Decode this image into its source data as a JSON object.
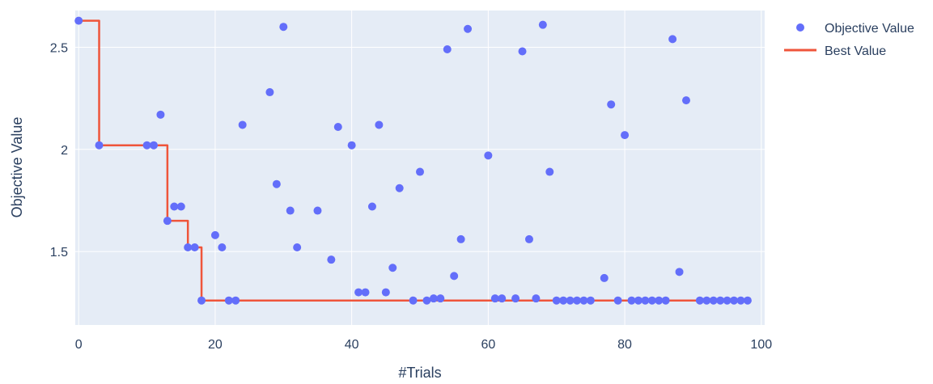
{
  "chart_data": {
    "type": "scatter",
    "title": "",
    "xlabel": "#Trials",
    "ylabel": "Objective Value",
    "xlim": [
      -0.5,
      100.5
    ],
    "ylim": [
      1.14,
      2.68
    ],
    "grid": true,
    "legend_position": "top-right",
    "x_ticks": [
      0,
      20,
      40,
      60,
      80,
      100
    ],
    "x_tick_labels": [
      "0",
      "20",
      "40",
      "60",
      "80",
      "100"
    ],
    "y_ticks": [
      1.5,
      2,
      2.5
    ],
    "y_tick_labels": [
      "1.5",
      "2",
      "2.5"
    ],
    "series": [
      {
        "name": "Objective Value",
        "kind": "markers",
        "color": "#636efa",
        "points": [
          [
            0,
            2.63
          ],
          [
            3,
            2.02
          ],
          [
            10,
            2.02
          ],
          [
            11,
            2.02
          ],
          [
            12,
            2.17
          ],
          [
            13,
            1.65
          ],
          [
            14,
            1.72
          ],
          [
            15,
            1.72
          ],
          [
            16,
            1.52
          ],
          [
            17,
            1.52
          ],
          [
            18,
            1.26
          ],
          [
            20,
            1.58
          ],
          [
            21,
            1.52
          ],
          [
            22,
            1.26
          ],
          [
            23,
            1.26
          ],
          [
            24,
            2.12
          ],
          [
            28,
            2.28
          ],
          [
            29,
            1.83
          ],
          [
            30,
            2.6
          ],
          [
            31,
            1.7
          ],
          [
            32,
            1.52
          ],
          [
            35,
            1.7
          ],
          [
            37,
            1.46
          ],
          [
            38,
            2.11
          ],
          [
            40,
            2.02
          ],
          [
            41,
            1.3
          ],
          [
            42,
            1.3
          ],
          [
            43,
            1.72
          ],
          [
            44,
            2.12
          ],
          [
            45,
            1.3
          ],
          [
            46,
            1.42
          ],
          [
            47,
            1.81
          ],
          [
            49,
            1.26
          ],
          [
            50,
            1.89
          ],
          [
            51,
            1.26
          ],
          [
            52,
            1.27
          ],
          [
            53,
            1.27
          ],
          [
            54,
            2.49
          ],
          [
            55,
            1.38
          ],
          [
            56,
            1.56
          ],
          [
            57,
            2.59
          ],
          [
            60,
            1.97
          ],
          [
            61,
            1.27
          ],
          [
            62,
            1.27
          ],
          [
            64,
            1.27
          ],
          [
            65,
            2.48
          ],
          [
            66,
            1.56
          ],
          [
            67,
            1.27
          ],
          [
            68,
            2.61
          ],
          [
            69,
            1.89
          ],
          [
            70,
            1.26
          ],
          [
            71,
            1.26
          ],
          [
            72,
            1.26
          ],
          [
            73,
            1.26
          ],
          [
            74,
            1.26
          ],
          [
            75,
            1.26
          ],
          [
            77,
            1.37
          ],
          [
            78,
            2.22
          ],
          [
            79,
            1.26
          ],
          [
            80,
            2.07
          ],
          [
            81,
            1.26
          ],
          [
            82,
            1.26
          ],
          [
            83,
            1.26
          ],
          [
            84,
            1.26
          ],
          [
            85,
            1.26
          ],
          [
            86,
            1.26
          ],
          [
            87,
            2.54
          ],
          [
            88,
            1.4
          ],
          [
            89,
            2.24
          ],
          [
            91,
            1.26
          ],
          [
            92,
            1.26
          ],
          [
            93,
            1.26
          ],
          [
            94,
            1.26
          ],
          [
            95,
            1.26
          ],
          [
            96,
            1.26
          ],
          [
            97,
            1.26
          ],
          [
            98,
            1.26
          ]
        ]
      },
      {
        "name": "Best Value",
        "kind": "line",
        "shape": "hv",
        "color": "#ef553b",
        "points": [
          [
            0,
            2.63
          ],
          [
            3,
            2.02
          ],
          [
            13,
            1.65
          ],
          [
            16,
            1.52
          ],
          [
            18,
            1.26
          ],
          [
            98.5,
            1.26
          ]
        ]
      }
    ]
  },
  "colors": {
    "plot_background": "#e5ecf6",
    "grid": "#ffffff",
    "text": "#2a3f5f"
  }
}
